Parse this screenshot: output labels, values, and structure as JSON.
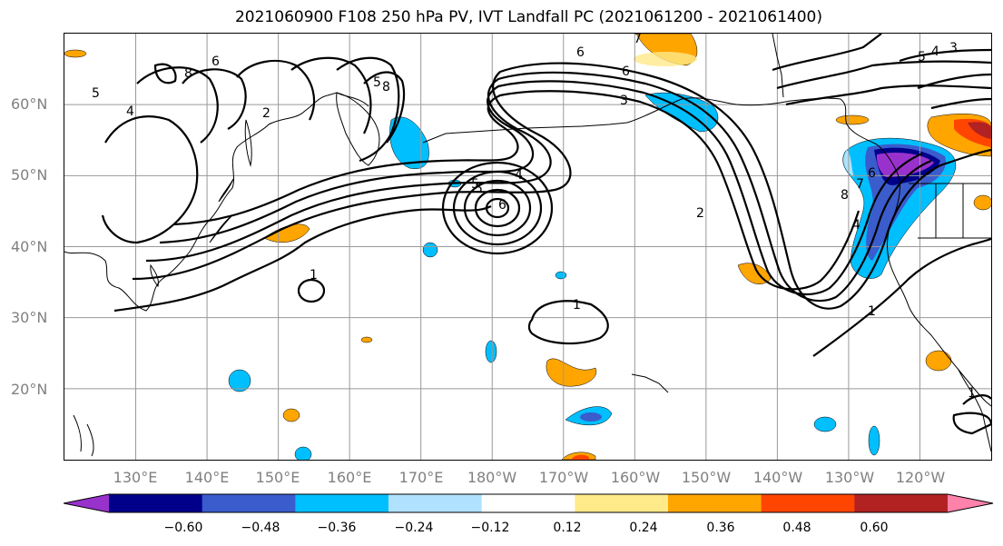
{
  "title": "2021060900 F108 250 hPa PV, IVT Landfall PC (2021061200 - 2021061400)",
  "lat_labels": [
    "60°N",
    "50°N",
    "40°N",
    "30°N",
    "20°N"
  ],
  "lon_labels": [
    "130°E",
    "140°E",
    "150°E",
    "160°E",
    "170°E",
    "180°W",
    "170°W",
    "160°W",
    "150°W",
    "140°W",
    "130°W",
    "120°W"
  ],
  "contour_labels": [
    "5",
    "4",
    "8",
    "6",
    "2",
    "5",
    "8",
    "6",
    "7",
    "6",
    "3",
    "5",
    "4",
    "5",
    "6",
    "2",
    "1",
    "1",
    "8",
    "7",
    "6",
    "4",
    "1",
    "1",
    "3",
    "4",
    "5"
  ],
  "colorbar": {
    "ticks": [
      "−0.60",
      "−0.48",
      "−0.36",
      "−0.24",
      "−0.12",
      "0.12",
      "0.24",
      "0.36",
      "0.48",
      "0.60"
    ],
    "colors": [
      "#9932cc",
      "#00008b",
      "#3a5ccc",
      "#00bfff",
      "#b0e2ff",
      "#ffffff",
      "#ffea8a",
      "#ffa500",
      "#ff4500",
      "#b22222",
      "#ff82ab"
    ]
  },
  "map": {
    "projection": "cylindrical",
    "lon_range": [
      "120°E",
      "110°W"
    ],
    "lat_range": [
      "10°N",
      "70°N"
    ],
    "gridlines": true,
    "fill_field": "IVT Landfall PC",
    "contour_field": "250 hPa PV"
  }
}
